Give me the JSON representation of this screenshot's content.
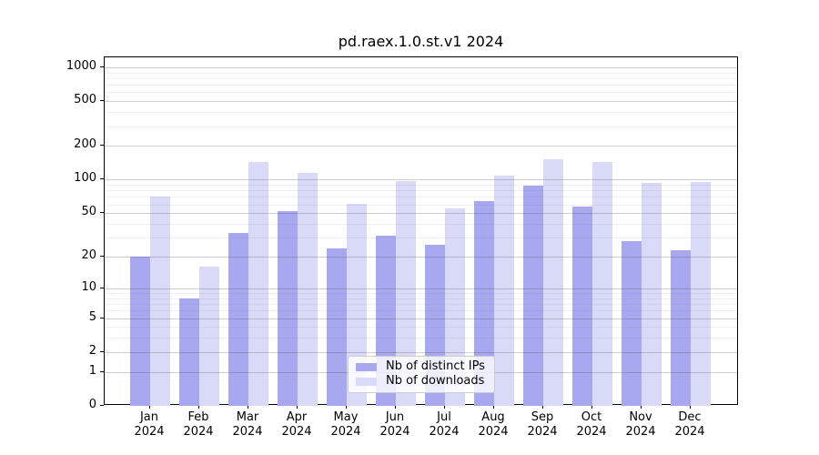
{
  "figure": {
    "title": "pd.raex.1.0.st.v1 2024",
    "background_color": "#ffffff",
    "text_color": "#000000"
  },
  "legend": {
    "items": [
      {
        "label": "Nb of distinct IPs",
        "color": "#a8a8f0"
      },
      {
        "label": "Nb of downloads",
        "color": "#d9d9f8"
      }
    ]
  },
  "chart_data": {
    "type": "bar",
    "title": "pd.raex.1.0.st.v1 2024",
    "categories": [
      "Jan",
      "Feb",
      "Mar",
      "Apr",
      "May",
      "Jun",
      "Jul",
      "Aug",
      "Sep",
      "Oct",
      "Nov",
      "Dec"
    ],
    "category_second_line": "2024",
    "series": [
      {
        "name": "Nb of distinct IPs",
        "key": "distinct-ips",
        "color": "#a8a8f0",
        "values": [
          20,
          8,
          33,
          52,
          24,
          31,
          26,
          64,
          88,
          57,
          28,
          23
        ]
      },
      {
        "name": "Nb of downloads",
        "key": "downloads",
        "color": "#d9d9f8",
        "values": [
          71,
          16,
          143,
          116,
          61,
          98,
          55,
          108,
          151,
          145,
          93,
          95
        ]
      }
    ],
    "xlabel": "",
    "ylabel": "",
    "y_scale": "log1p",
    "ylim": [
      0,
      1230
    ],
    "y_major_ticks": [
      0,
      1,
      2,
      5,
      10,
      20,
      50,
      100,
      200,
      500,
      1000
    ],
    "y_minor_gridlines": [
      3,
      4,
      6,
      7,
      8,
      9,
      30,
      40,
      60,
      70,
      80,
      90,
      300,
      400,
      600,
      700,
      800,
      900
    ],
    "grid": true,
    "legend_position": "lower center"
  }
}
